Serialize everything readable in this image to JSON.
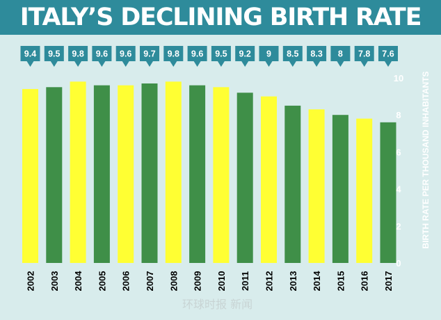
{
  "title": "ITALY’S DECLINING BIRTH RATE",
  "watermark": "环球时报 新闻",
  "colors": {
    "banner": "#2e8b9b",
    "background": "#d8ecec",
    "yellow": "#ffff33",
    "green": "#3f8f48",
    "callout": "#2e8b9b",
    "axis_text": "#ffffff",
    "year_text": "#000000"
  },
  "chart_data": {
    "type": "bar",
    "title": "ITALY’S DECLINING BIRTH RATE",
    "xlabel": "",
    "ylabel": "BIRTH RATE PER THOUSAND INHABITANTS",
    "categories": [
      "2002",
      "2003",
      "2004",
      "2005",
      "2006",
      "2007",
      "2008",
      "2009",
      "2010",
      "2011",
      "2012",
      "2013",
      "2014",
      "2015",
      "2016",
      "2017"
    ],
    "values": [
      9.4,
      9.5,
      9.8,
      9.6,
      9.6,
      9.7,
      9.8,
      9.6,
      9.5,
      9.2,
      9,
      8.5,
      8.3,
      8,
      7.8,
      7.6
    ],
    "data_labels": [
      "9.4",
      "9.5",
      "9.8",
      "9.6",
      "9.6",
      "9.7",
      "9.8",
      "9.6",
      "9.5",
      "9.2",
      "9",
      "8.5",
      "8.3",
      "8",
      "7.8",
      "7.6"
    ],
    "bar_colors": [
      "yellow",
      "green",
      "yellow",
      "green",
      "yellow",
      "green",
      "yellow",
      "green",
      "yellow",
      "green",
      "yellow",
      "green",
      "yellow",
      "green",
      "yellow",
      "green"
    ],
    "ylim": [
      0,
      10
    ],
    "yticks": [
      "0",
      "2",
      "4",
      "6",
      "8",
      "10"
    ],
    "grid": false,
    "legend": "none"
  }
}
